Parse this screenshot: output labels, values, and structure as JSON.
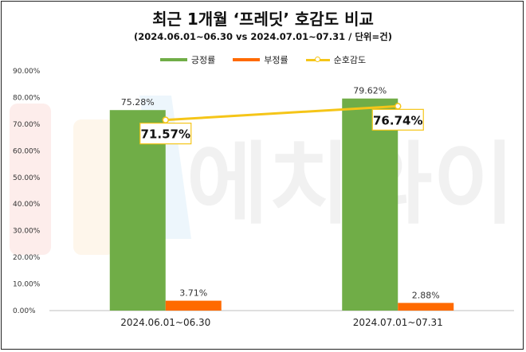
{
  "title": "최근 1개월 ‘프레딧’ 호감도 비교",
  "subtitle": "(2024.06.01~06.30 vs 2024.07.01~07.31 / 단위=건)",
  "watermark_text": "에치와이",
  "colors": {
    "positive": "#70ad47",
    "negative": "#ff6a00",
    "net": "#f5c518"
  },
  "chart_data": {
    "type": "bar",
    "title": "최근 1개월 ‘프레딧’ 호감도 비교",
    "subtitle": "(2024.06.01~06.30 vs 2024.07.01~07.31 / 단위=건)",
    "categories": [
      "2024.06.01~06.30",
      "2024.07.01~07.31"
    ],
    "series": [
      {
        "name": "긍정률",
        "type": "bar",
        "values": [
          75.28,
          79.62
        ],
        "labels": [
          "75.28%",
          "79.62%"
        ]
      },
      {
        "name": "부정률",
        "type": "bar",
        "values": [
          3.71,
          2.88
        ],
        "labels": [
          "3.71%",
          "2.88%"
        ]
      },
      {
        "name": "순호감도",
        "type": "line",
        "values": [
          71.57,
          76.74
        ],
        "labels": [
          "71.57%",
          "76.74%"
        ]
      }
    ],
    "ylim": [
      0,
      90
    ],
    "yticks": [
      0,
      10,
      20,
      30,
      40,
      50,
      60,
      70,
      80,
      90
    ],
    "ytick_labels": [
      "0.00%",
      "10.00%",
      "20.00%",
      "30.00%",
      "40.00%",
      "50.00%",
      "60.00%",
      "70.00%",
      "80.00%",
      "90.00%"
    ],
    "grid": false,
    "legend": "top"
  }
}
